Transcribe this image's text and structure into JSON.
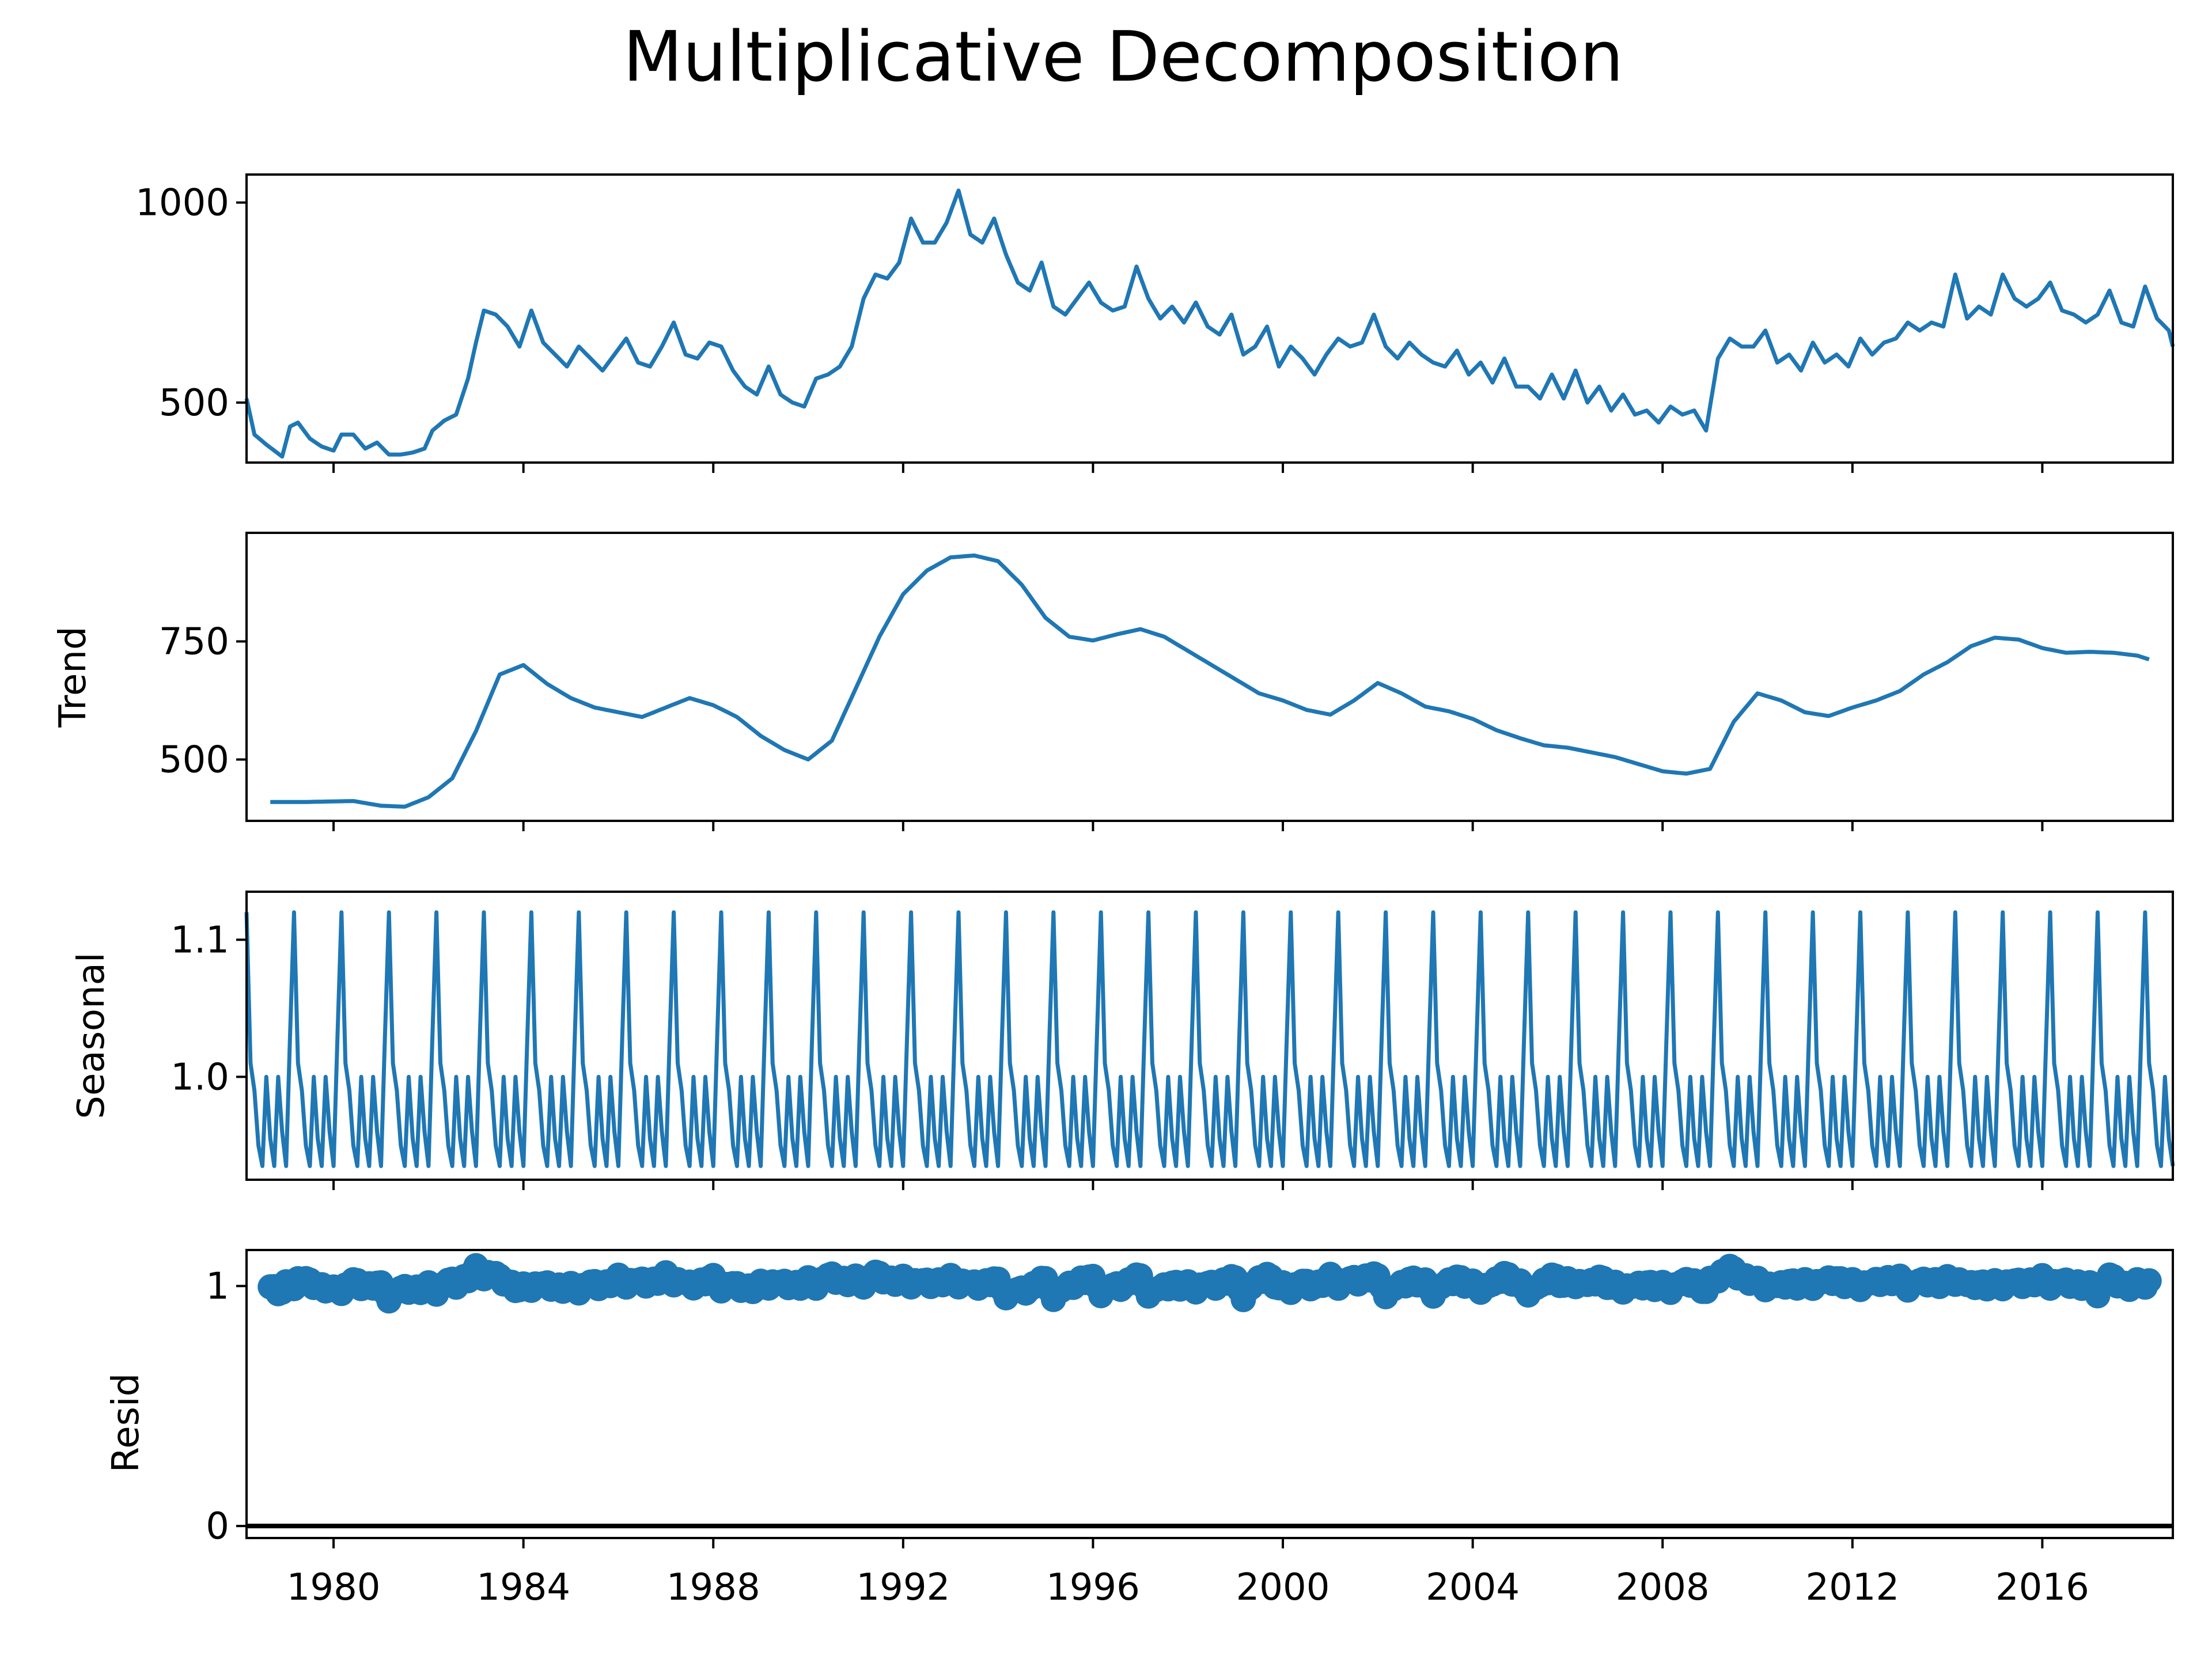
{
  "title": "Multiplicative Decomposition",
  "colors": {
    "series": "#1f77b4",
    "axis": "#000000",
    "zero_line": "#000000",
    "background": "#ffffff"
  },
  "chart_data": {
    "type": "line",
    "title": "Multiplicative Decomposition",
    "x_start": "1978-03",
    "x_end": "2018-10",
    "x_frequency": "monthly",
    "x_axis": {
      "type": "date",
      "range": [
        "1978-03",
        "2018-10"
      ],
      "ticks": [
        1980,
        1984,
        1988,
        1992,
        1996,
        2000,
        2004,
        2008,
        2012,
        2016
      ],
      "tick_labels": [
        "1980",
        "1984",
        "1988",
        "1992",
        "1996",
        "2000",
        "2004",
        "2008",
        "2012",
        "2016"
      ]
    },
    "panels": [
      {
        "name": "observed",
        "ylabel": "",
        "style": "line",
        "ylim": [
          350,
          1070
        ],
        "yticks": [
          500,
          1000
        ],
        "ytick_labels": [
          "500",
          "1000"
        ],
        "anchors": [
          [
            "1978-03",
            510
          ],
          [
            "1978-05",
            420
          ],
          [
            "1978-08",
            395
          ],
          [
            "1978-10",
            380
          ],
          [
            "1978-12",
            365
          ],
          [
            "1979-02",
            440
          ],
          [
            "1979-04",
            450
          ],
          [
            "1979-07",
            410
          ],
          [
            "1979-10",
            390
          ],
          [
            "1980-01",
            380
          ],
          [
            "1980-03",
            420
          ],
          [
            "1980-06",
            420
          ],
          [
            "1980-09",
            385
          ],
          [
            "1980-12",
            400
          ],
          [
            "1981-03",
            370
          ],
          [
            "1981-06",
            370
          ],
          [
            "1981-09",
            375
          ],
          [
            "1981-12",
            385
          ],
          [
            "1982-02",
            430
          ],
          [
            "1982-05",
            455
          ],
          [
            "1982-08",
            470
          ],
          [
            "1982-11",
            560
          ],
          [
            "1983-01",
            650
          ],
          [
            "1983-03",
            730
          ],
          [
            "1983-06",
            720
          ],
          [
            "1983-09",
            690
          ],
          [
            "1983-12",
            640
          ],
          [
            "1984-03",
            730
          ],
          [
            "1984-06",
            650
          ],
          [
            "1984-09",
            620
          ],
          [
            "1984-12",
            590
          ],
          [
            "1985-03",
            640
          ],
          [
            "1985-06",
            610
          ],
          [
            "1985-09",
            580
          ],
          [
            "1985-12",
            620
          ],
          [
            "1986-03",
            660
          ],
          [
            "1986-06",
            600
          ],
          [
            "1986-09",
            590
          ],
          [
            "1986-12",
            640
          ],
          [
            "1987-03",
            700
          ],
          [
            "1987-06",
            620
          ],
          [
            "1987-09",
            610
          ],
          [
            "1987-12",
            650
          ],
          [
            "1988-03",
            640
          ],
          [
            "1988-06",
            580
          ],
          [
            "1988-09",
            540
          ],
          [
            "1988-12",
            520
          ],
          [
            "1989-03",
            590
          ],
          [
            "1989-06",
            520
          ],
          [
            "1989-09",
            500
          ],
          [
            "1989-12",
            490
          ],
          [
            "1990-03",
            560
          ],
          [
            "1990-06",
            570
          ],
          [
            "1990-09",
            590
          ],
          [
            "1990-12",
            640
          ],
          [
            "1991-03",
            760
          ],
          [
            "1991-06",
            820
          ],
          [
            "1991-09",
            810
          ],
          [
            "1991-12",
            850
          ],
          [
            "1992-03",
            960
          ],
          [
            "1992-06",
            900
          ],
          [
            "1992-09",
            900
          ],
          [
            "1992-12",
            950
          ],
          [
            "1993-03",
            1030
          ],
          [
            "1993-06",
            920
          ],
          [
            "1993-09",
            900
          ],
          [
            "1993-12",
            960
          ],
          [
            "1994-03",
            870
          ],
          [
            "1994-06",
            800
          ],
          [
            "1994-09",
            780
          ],
          [
            "1994-12",
            850
          ],
          [
            "1995-03",
            740
          ],
          [
            "1995-06",
            720
          ],
          [
            "1995-09",
            760
          ],
          [
            "1995-12",
            800
          ],
          [
            "1996-03",
            750
          ],
          [
            "1996-06",
            730
          ],
          [
            "1996-09",
            740
          ],
          [
            "1996-12",
            840
          ],
          [
            "1997-03",
            760
          ],
          [
            "1997-06",
            710
          ],
          [
            "1997-09",
            740
          ],
          [
            "1997-12",
            700
          ],
          [
            "1998-03",
            750
          ],
          [
            "1998-06",
            690
          ],
          [
            "1998-09",
            670
          ],
          [
            "1998-12",
            720
          ],
          [
            "1999-03",
            620
          ],
          [
            "1999-06",
            640
          ],
          [
            "1999-09",
            690
          ],
          [
            "1999-12",
            590
          ],
          [
            "2000-03",
            640
          ],
          [
            "2000-06",
            610
          ],
          [
            "2000-09",
            570
          ],
          [
            "2000-12",
            620
          ],
          [
            "2001-03",
            660
          ],
          [
            "2001-06",
            640
          ],
          [
            "2001-09",
            650
          ],
          [
            "2001-12",
            720
          ],
          [
            "2002-03",
            640
          ],
          [
            "2002-06",
            610
          ],
          [
            "2002-09",
            650
          ],
          [
            "2002-12",
            620
          ],
          [
            "2003-03",
            600
          ],
          [
            "2003-06",
            590
          ],
          [
            "2003-09",
            630
          ],
          [
            "2003-12",
            570
          ],
          [
            "2004-03",
            600
          ],
          [
            "2004-06",
            550
          ],
          [
            "2004-09",
            610
          ],
          [
            "2004-12",
            540
          ],
          [
            "2005-03",
            540
          ],
          [
            "2005-06",
            510
          ],
          [
            "2005-09",
            570
          ],
          [
            "2005-12",
            510
          ],
          [
            "2006-03",
            580
          ],
          [
            "2006-06",
            500
          ],
          [
            "2006-09",
            540
          ],
          [
            "2006-12",
            480
          ],
          [
            "2007-03",
            520
          ],
          [
            "2007-06",
            470
          ],
          [
            "2007-09",
            480
          ],
          [
            "2007-12",
            450
          ],
          [
            "2008-03",
            490
          ],
          [
            "2008-06",
            470
          ],
          [
            "2008-09",
            480
          ],
          [
            "2008-12",
            430
          ],
          [
            "2009-03",
            610
          ],
          [
            "2009-06",
            660
          ],
          [
            "2009-09",
            640
          ],
          [
            "2009-12",
            640
          ],
          [
            "2010-03",
            680
          ],
          [
            "2010-06",
            600
          ],
          [
            "2010-09",
            620
          ],
          [
            "2010-12",
            580
          ],
          [
            "2011-03",
            650
          ],
          [
            "2011-06",
            600
          ],
          [
            "2011-09",
            620
          ],
          [
            "2011-12",
            590
          ],
          [
            "2012-03",
            660
          ],
          [
            "2012-06",
            620
          ],
          [
            "2012-09",
            650
          ],
          [
            "2012-12",
            660
          ],
          [
            "2013-03",
            700
          ],
          [
            "2013-06",
            680
          ],
          [
            "2013-09",
            700
          ],
          [
            "2013-12",
            690
          ],
          [
            "2014-03",
            820
          ],
          [
            "2014-06",
            710
          ],
          [
            "2014-09",
            740
          ],
          [
            "2014-12",
            720
          ],
          [
            "2015-03",
            820
          ],
          [
            "2015-06",
            760
          ],
          [
            "2015-09",
            740
          ],
          [
            "2015-12",
            760
          ],
          [
            "2016-03",
            800
          ],
          [
            "2016-06",
            730
          ],
          [
            "2016-09",
            720
          ],
          [
            "2016-12",
            700
          ],
          [
            "2017-03",
            720
          ],
          [
            "2017-06",
            780
          ],
          [
            "2017-09",
            700
          ],
          [
            "2017-12",
            690
          ],
          [
            "2018-03",
            790
          ],
          [
            "2018-06",
            710
          ],
          [
            "2018-09",
            680
          ],
          [
            "2018-10",
            640
          ]
        ]
      },
      {
        "name": "trend",
        "ylabel": "Trend",
        "style": "line",
        "ylim": [
          370,
          980
        ],
        "yticks": [
          500,
          750
        ],
        "ytick_labels": [
          "500",
          "750"
        ],
        "valid_range": [
          "1978-09",
          "2018-04"
        ],
        "anchors": [
          [
            "1978-09",
            410
          ],
          [
            "1979-06",
            410
          ],
          [
            "1980-06",
            412
          ],
          [
            "1981-01",
            402
          ],
          [
            "1981-07",
            400
          ],
          [
            "1982-01",
            420
          ],
          [
            "1982-07",
            460
          ],
          [
            "1983-01",
            560
          ],
          [
            "1983-07",
            680
          ],
          [
            "1984-01",
            700
          ],
          [
            "1984-07",
            660
          ],
          [
            "1985-01",
            630
          ],
          [
            "1985-07",
            610
          ],
          [
            "1986-01",
            600
          ],
          [
            "1986-07",
            590
          ],
          [
            "1987-01",
            610
          ],
          [
            "1987-07",
            630
          ],
          [
            "1988-01",
            615
          ],
          [
            "1988-07",
            590
          ],
          [
            "1989-01",
            550
          ],
          [
            "1989-07",
            520
          ],
          [
            "1990-01",
            500
          ],
          [
            "1990-07",
            540
          ],
          [
            "1991-01",
            650
          ],
          [
            "1991-07",
            760
          ],
          [
            "1992-01",
            850
          ],
          [
            "1992-07",
            900
          ],
          [
            "1993-01",
            928
          ],
          [
            "1993-07",
            932
          ],
          [
            "1994-01",
            920
          ],
          [
            "1994-07",
            870
          ],
          [
            "1995-01",
            800
          ],
          [
            "1995-07",
            760
          ],
          [
            "1996-01",
            752
          ],
          [
            "1996-07",
            765
          ],
          [
            "1997-01",
            776
          ],
          [
            "1997-07",
            760
          ],
          [
            "1998-01",
            730
          ],
          [
            "1998-07",
            700
          ],
          [
            "1999-01",
            670
          ],
          [
            "1999-07",
            640
          ],
          [
            "2000-01",
            625
          ],
          [
            "2000-07",
            605
          ],
          [
            "2001-01",
            595
          ],
          [
            "2001-07",
            625
          ],
          [
            "2002-01",
            662
          ],
          [
            "2002-07",
            640
          ],
          [
            "2003-01",
            612
          ],
          [
            "2003-07",
            602
          ],
          [
            "2004-01",
            586
          ],
          [
            "2004-07",
            562
          ],
          [
            "2005-01",
            545
          ],
          [
            "2005-07",
            530
          ],
          [
            "2006-01",
            525
          ],
          [
            "2006-07",
            515
          ],
          [
            "2007-01",
            505
          ],
          [
            "2007-07",
            490
          ],
          [
            "2008-01",
            475
          ],
          [
            "2008-07",
            470
          ],
          [
            "2009-01",
            480
          ],
          [
            "2009-07",
            580
          ],
          [
            "2010-01",
            640
          ],
          [
            "2010-07",
            625
          ],
          [
            "2011-01",
            600
          ],
          [
            "2011-07",
            592
          ],
          [
            "2012-01",
            610
          ],
          [
            "2012-07",
            625
          ],
          [
            "2013-01",
            645
          ],
          [
            "2013-07",
            680
          ],
          [
            "2014-01",
            706
          ],
          [
            "2014-07",
            740
          ],
          [
            "2015-01",
            758
          ],
          [
            "2015-07",
            754
          ],
          [
            "2016-01",
            736
          ],
          [
            "2016-07",
            726
          ],
          [
            "2017-01",
            728
          ],
          [
            "2017-07",
            726
          ],
          [
            "2018-01",
            720
          ],
          [
            "2018-04",
            712
          ]
        ]
      },
      {
        "name": "seasonal",
        "ylabel": "Seasonal",
        "style": "line",
        "ylim": [
          0.925,
          1.135
        ],
        "yticks": [
          1.0,
          1.1
        ],
        "ytick_labels": [
          "1.0",
          "1.1"
        ],
        "monthly_factors_from_march": [
          1.12,
          1.01,
          0.99,
          0.95,
          0.935,
          1.0,
          0.955,
          0.935,
          1.0,
          0.96,
          0.935,
          1.03
        ]
      },
      {
        "name": "resid",
        "ylabel": "Resid",
        "style": "scatter",
        "ylim": [
          -0.05,
          1.15
        ],
        "yticks": [
          0,
          1
        ],
        "ytick_labels": [
          "0",
          "1"
        ],
        "zero_line": true,
        "range": [
          0.91,
          1.09
        ],
        "typical": 1.0
      }
    ]
  }
}
